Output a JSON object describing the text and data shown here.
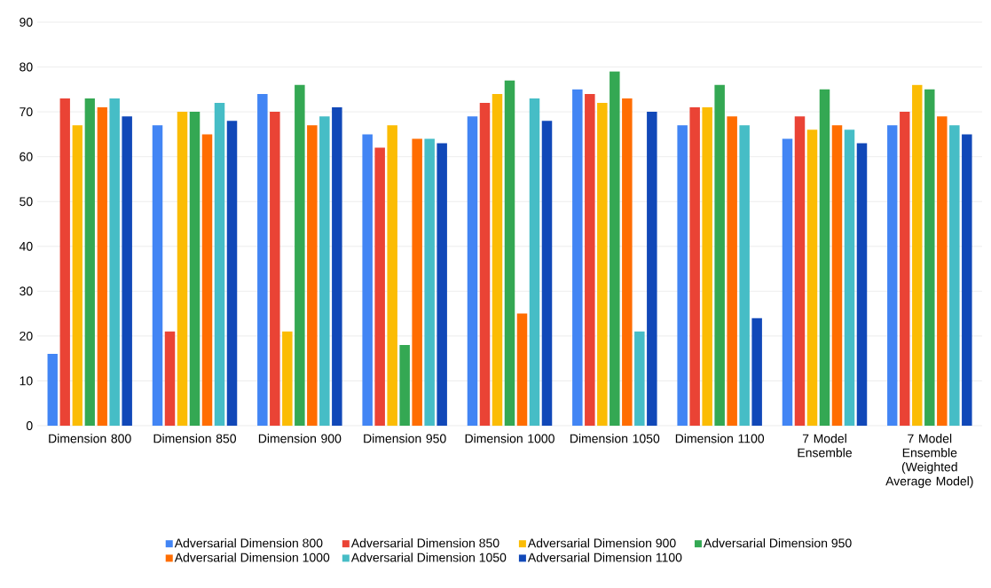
{
  "chart_data": {
    "type": "bar",
    "categories": [
      "Dimension 800",
      "Dimension 850",
      "Dimension 900",
      "Dimension 950",
      "Dimension 1000",
      "Dimension 1050",
      "Dimension 1100",
      "7 Model Ensemble",
      "7 Model Ensemble (Weighted Average Model)"
    ],
    "series": [
      {
        "name": "Adversarial Dimension 800",
        "color": "#4285f4",
        "values": [
          16,
          67,
          74,
          65,
          69,
          75,
          67,
          64,
          67
        ]
      },
      {
        "name": "Adversarial Dimension 850",
        "color": "#ea4335",
        "values": [
          73,
          21,
          70,
          62,
          72,
          74,
          71,
          69,
          70
        ]
      },
      {
        "name": "Adversarial Dimension 900",
        "color": "#fbbc04",
        "values": [
          67,
          70,
          21,
          67,
          74,
          72,
          71,
          66,
          76
        ]
      },
      {
        "name": "Adversarial Dimension 950",
        "color": "#34a853",
        "values": [
          73,
          70,
          76,
          18,
          77,
          79,
          76,
          75,
          75
        ]
      },
      {
        "name": "Adversarial Dimension 1000",
        "color": "#ff6d01",
        "values": [
          71,
          65,
          67,
          64,
          25,
          73,
          69,
          67,
          69
        ]
      },
      {
        "name": "Adversarial Dimension 1050",
        "color": "#46bdc6",
        "values": [
          73,
          72,
          69,
          64,
          73,
          21,
          67,
          66,
          67
        ]
      },
      {
        "name": "Adversarial Dimension 1100",
        "color": "#1148b8",
        "values": [
          69,
          68,
          71,
          63,
          68,
          70,
          24,
          63,
          65
        ]
      }
    ],
    "ylim": [
      0,
      90
    ],
    "yticks": [
      0,
      10,
      20,
      30,
      40,
      50,
      60,
      70,
      80,
      90
    ],
    "grid": "y",
    "legend": "bottom"
  }
}
